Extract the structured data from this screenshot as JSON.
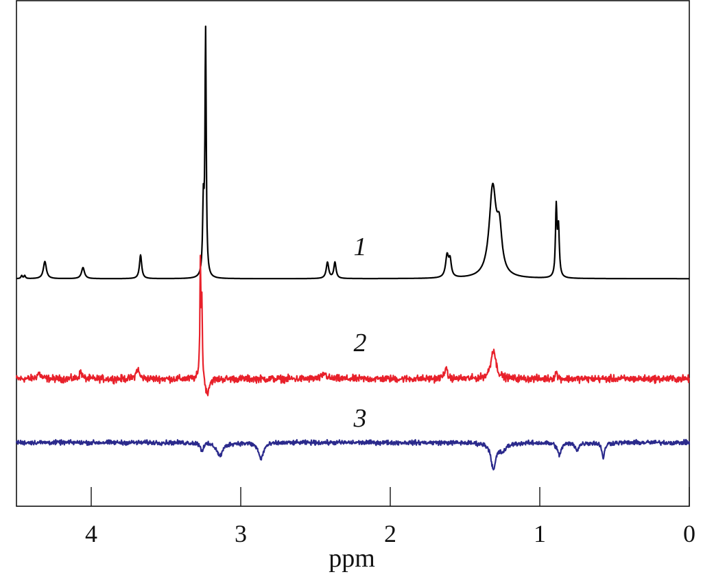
{
  "chart_data": {
    "type": "line",
    "title": "",
    "xlabel": "ppm",
    "ylabel": "",
    "xlim": [
      4.5,
      0
    ],
    "x_reversed": true,
    "ylim": [
      0,
      100
    ],
    "xticks": [
      4,
      3,
      2,
      1,
      0
    ],
    "xtick_labels": [
      "4",
      "3",
      "2",
      "1",
      "0"
    ],
    "grid": false,
    "legend": "none",
    "series": [
      {
        "label": "1",
        "color": "#000000",
        "baseline": 45,
        "noise": 0,
        "peaks": [
          [
            4.465,
            0.6,
            0.006
          ],
          [
            4.445,
            0.6,
            0.006
          ],
          [
            4.31,
            3.4,
            0.012
          ],
          [
            4.055,
            2.2,
            0.012
          ],
          [
            3.67,
            4.7,
            0.009
          ],
          [
            3.235,
            48,
            0.005
          ],
          [
            3.25,
            14,
            0.006
          ],
          [
            2.42,
            3.2,
            0.01
          ],
          [
            2.37,
            3.2,
            0.009
          ],
          [
            1.62,
            4.3,
            0.012
          ],
          [
            1.6,
            3.2,
            0.01
          ],
          [
            1.315,
            17.5,
            0.028
          ],
          [
            1.27,
            8,
            0.02
          ],
          [
            0.89,
            13.5,
            0.006
          ],
          [
            0.875,
            9.5,
            0.007
          ]
        ]
      },
      {
        "label": "2",
        "color": "#e8202a",
        "baseline": 25.2,
        "noise": 0.7,
        "peaks": [
          [
            4.35,
            1.1,
            0.015
          ],
          [
            4.07,
            1.4,
            0.01
          ],
          [
            3.69,
            2,
            0.012
          ],
          [
            3.27,
            23,
            0.004
          ],
          [
            3.26,
            14,
            0.004
          ],
          [
            3.225,
            -3.2,
            0.015
          ],
          [
            2.44,
            1.1,
            0.015
          ],
          [
            1.63,
            2,
            0.012
          ],
          [
            1.31,
            5.8,
            0.02
          ],
          [
            0.89,
            1.3,
            0.008
          ]
        ]
      },
      {
        "label": "3",
        "color": "#2b2a8c",
        "baseline": 12.6,
        "noise": 0.45,
        "peaks": [
          [
            3.26,
            -1.6,
            0.01
          ],
          [
            3.14,
            -2.6,
            0.025
          ],
          [
            2.865,
            -3.2,
            0.02
          ],
          [
            1.31,
            -5.2,
            0.018
          ],
          [
            1.25,
            -1.5,
            0.03
          ],
          [
            0.87,
            -2.5,
            0.015
          ],
          [
            0.75,
            -1.4,
            0.015
          ],
          [
            0.575,
            -3.2,
            0.01
          ]
        ]
      }
    ]
  }
}
